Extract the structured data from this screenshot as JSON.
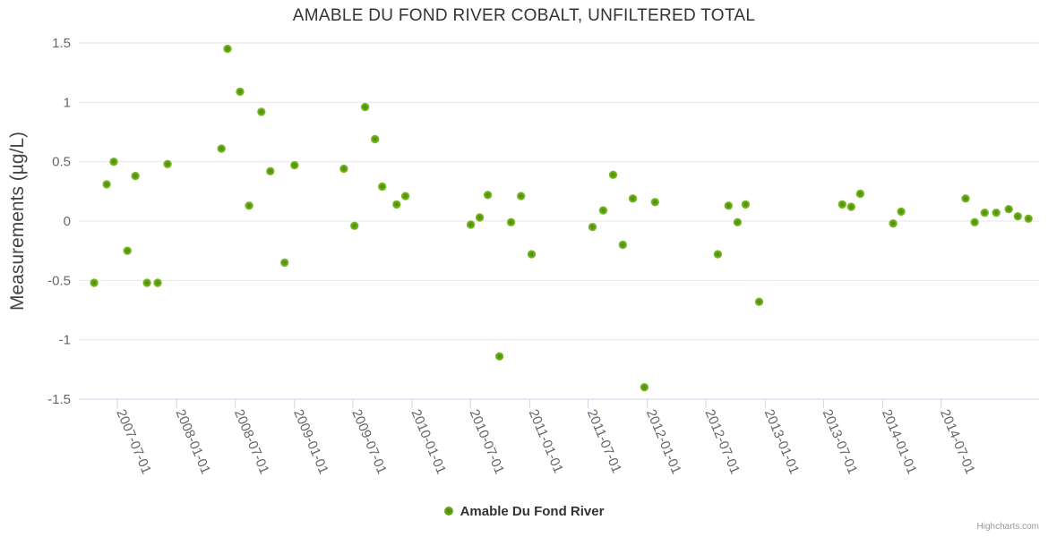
{
  "header": {
    "title": "AMABLE DU FOND RIVER COBALT, UNFILTERED TOTAL"
  },
  "y_axis": {
    "title": "Measurements (µg/L)"
  },
  "credits": {
    "label": "Highcharts.com"
  },
  "colors": {
    "series": "#6aab12",
    "grid": "#e6e6e6",
    "axis_line": "#ccd6eb",
    "label": "#666666",
    "title": "#333333"
  },
  "chart_data": {
    "type": "scatter",
    "title": "AMABLE DU FOND RIVER COBALT, UNFILTERED TOTAL",
    "xlabel": "",
    "ylabel": "Measurements (µg/L)",
    "ylim": [
      -1.5,
      1.5
    ],
    "grid": "horizontal",
    "legend_position": "bottom-center",
    "y_ticks": [
      {
        "label": "1.5",
        "value": 1.5
      },
      {
        "label": "1",
        "value": 1
      },
      {
        "label": "0.5",
        "value": 0.5
      },
      {
        "label": "0",
        "value": 0
      },
      {
        "label": "-0.5",
        "value": -0.5
      },
      {
        "label": "-1",
        "value": -1
      },
      {
        "label": "-1.5",
        "value": -1.5
      }
    ],
    "x_ticks": [
      "2007-07-01",
      "2008-01-01",
      "2008-07-01",
      "2009-01-01",
      "2009-07-01",
      "2010-01-01",
      "2010-07-01",
      "2011-01-01",
      "2011-07-01",
      "2012-01-01",
      "2012-07-01",
      "2013-01-01",
      "2013-07-01",
      "2014-01-01",
      "2014-07-01"
    ],
    "series": [
      {
        "name": "Amable Du Fond River",
        "color": "#6aab12",
        "points": [
          [
            "2007-04-20",
            -0.52
          ],
          [
            "2007-05-29",
            0.31
          ],
          [
            "2007-06-20",
            0.5
          ],
          [
            "2007-08-01",
            -0.25
          ],
          [
            "2007-08-26",
            0.38
          ],
          [
            "2007-10-01",
            -0.52
          ],
          [
            "2007-11-03",
            -0.52
          ],
          [
            "2007-12-04",
            0.48
          ],
          [
            "2008-05-19",
            0.61
          ],
          [
            "2008-06-07",
            1.45
          ],
          [
            "2008-07-16",
            1.09
          ],
          [
            "2008-08-13",
            0.13
          ],
          [
            "2008-09-20",
            0.92
          ],
          [
            "2008-10-18",
            0.42
          ],
          [
            "2008-12-01",
            -0.35
          ],
          [
            "2009-01-01",
            0.47
          ],
          [
            "2009-06-03",
            0.44
          ],
          [
            "2009-07-06",
            -0.04
          ],
          [
            "2009-08-08",
            0.96
          ],
          [
            "2009-09-08",
            0.69
          ],
          [
            "2009-09-30",
            0.29
          ],
          [
            "2009-11-14",
            0.14
          ],
          [
            "2009-12-11",
            0.21
          ],
          [
            "2010-07-02",
            -0.03
          ],
          [
            "2010-07-30",
            0.03
          ],
          [
            "2010-08-24",
            0.22
          ],
          [
            "2010-09-29",
            -1.14
          ],
          [
            "2010-11-04",
            -0.01
          ],
          [
            "2010-12-05",
            0.21
          ],
          [
            "2011-01-07",
            -0.28
          ],
          [
            "2011-07-15",
            -0.05
          ],
          [
            "2011-08-17",
            0.09
          ],
          [
            "2011-09-17",
            0.39
          ],
          [
            "2011-10-17",
            -0.2
          ],
          [
            "2011-11-17",
            0.19
          ],
          [
            "2011-12-23",
            -1.4
          ],
          [
            "2012-01-25",
            0.16
          ],
          [
            "2012-08-07",
            -0.28
          ],
          [
            "2012-09-09",
            0.13
          ],
          [
            "2012-10-07",
            -0.01
          ],
          [
            "2012-11-01",
            0.14
          ],
          [
            "2012-12-13",
            -0.68
          ],
          [
            "2013-08-28",
            0.14
          ],
          [
            "2013-09-25",
            0.12
          ],
          [
            "2013-10-23",
            0.23
          ],
          [
            "2014-02-02",
            -0.02
          ],
          [
            "2014-02-27",
            0.08
          ],
          [
            "2014-09-15",
            0.19
          ],
          [
            "2014-10-13",
            -0.01
          ],
          [
            "2014-11-13",
            0.07
          ],
          [
            "2014-12-19",
            0.07
          ],
          [
            "2015-01-27",
            0.1
          ],
          [
            "2015-02-24",
            0.04
          ],
          [
            "2015-03-29",
            0.02
          ]
        ]
      }
    ]
  }
}
